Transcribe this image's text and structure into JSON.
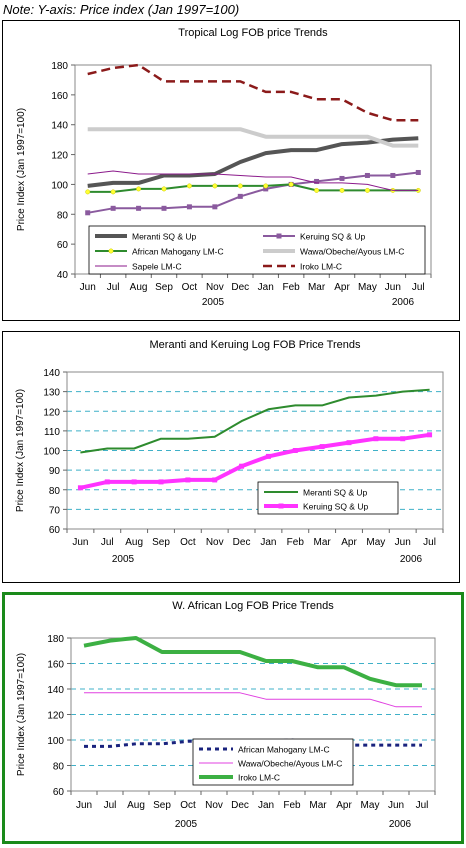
{
  "note": "Note: Y-axis: Price index (Jan 1997=100)",
  "chart_data": [
    {
      "type": "line",
      "title": "Tropical Log FOB price Trends",
      "ylabel": "Price Index (Jan 1997=100)",
      "xlabel": "",
      "categories": [
        "Jun",
        "Jul",
        "Aug",
        "Sep",
        "Oct",
        "Nov",
        "Dec",
        "Jan",
        "Feb",
        "Mar",
        "Apr",
        "May",
        "Jun",
        "Jul"
      ],
      "year_labels": [
        "2005",
        "2006"
      ],
      "ylim": [
        40,
        180
      ],
      "yticks": [
        40,
        60,
        80,
        100,
        120,
        140,
        160,
        180
      ],
      "grid": false,
      "legend_position": "bottom-inside",
      "series": [
        {
          "name": "Meranti SQ & Up",
          "color": "#555555",
          "style": "solid-thick",
          "marker": "none",
          "values": [
            99,
            101,
            101,
            106,
            106,
            107,
            115,
            121,
            123,
            123,
            127,
            128,
            130,
            131
          ]
        },
        {
          "name": "Keruing SQ & Up",
          "color": "#8a5a9e",
          "style": "solid",
          "marker": "square",
          "values": [
            81,
            84,
            84,
            84,
            85,
            85,
            92,
            97,
            100,
            102,
            104,
            106,
            106,
            108
          ]
        },
        {
          "name": "African Mahogany LM-C",
          "color": "#2e8b2e",
          "style": "solid",
          "marker": "yellow-dot",
          "values": [
            95,
            95,
            97,
            97,
            99,
            99,
            99,
            99,
            100,
            96,
            96,
            96,
            96,
            96
          ]
        },
        {
          "name": "Wawa/Obeche/Ayous LM-C",
          "color": "#cccccc",
          "style": "solid-thick",
          "marker": "none",
          "values": [
            137,
            137,
            137,
            137,
            137,
            137,
            137,
            132,
            132,
            132,
            132,
            132,
            126,
            126
          ]
        },
        {
          "name": "Sapele LM-C",
          "color": "#8b1a8b",
          "style": "solid-thin",
          "marker": "none",
          "values": [
            107,
            109,
            107,
            107,
            107,
            107,
            106,
            105,
            105,
            101,
            101,
            100,
            96,
            96
          ]
        },
        {
          "name": "Iroko LM-C",
          "color": "#8b1a1a",
          "style": "dashed",
          "marker": "none",
          "values": [
            174,
            178,
            180,
            169,
            169,
            169,
            169,
            162,
            162,
            157,
            157,
            148,
            143,
            143
          ]
        }
      ]
    },
    {
      "type": "line",
      "title": "Meranti and Keruing Log FOB Price Trends",
      "ylabel": "Price Index (Jan 1997=100)",
      "xlabel": "",
      "categories": [
        "Jun",
        "Jul",
        "Aug",
        "Sep",
        "Oct",
        "Nov",
        "Dec",
        "Jan",
        "Feb",
        "Mar",
        "Apr",
        "May",
        "Jun",
        "Jul"
      ],
      "year_labels": [
        "2005",
        "2006"
      ],
      "ylim": [
        60,
        140
      ],
      "yticks": [
        60,
        70,
        80,
        90,
        100,
        110,
        120,
        130,
        140
      ],
      "grid": true,
      "legend_position": "bottom-right-inside",
      "series": [
        {
          "name": "Meranti SQ & Up",
          "color": "#2e8b2e",
          "style": "solid",
          "marker": "none",
          "values": [
            99,
            101,
            101,
            106,
            106,
            107,
            115,
            121,
            123,
            123,
            127,
            128,
            130,
            131
          ]
        },
        {
          "name": "Keruing SQ & Up",
          "color": "#ff33ff",
          "style": "solid-thick",
          "marker": "square",
          "values": [
            81,
            84,
            84,
            84,
            85,
            85,
            92,
            97,
            100,
            102,
            104,
            106,
            106,
            108
          ]
        }
      ]
    },
    {
      "type": "line",
      "title": "W. African Log FOB Price Trends",
      "ylabel": "Price Index (Jan 1997=100)",
      "xlabel": "",
      "categories": [
        "Jun",
        "Jul",
        "Aug",
        "Sep",
        "Oct",
        "Nov",
        "Dec",
        "Jan",
        "Feb",
        "Mar",
        "Apr",
        "May",
        "Jun",
        "Jul"
      ],
      "year_labels": [
        "2005",
        "2006"
      ],
      "ylim": [
        60,
        180
      ],
      "yticks": [
        60,
        80,
        100,
        120,
        140,
        160,
        180
      ],
      "grid": true,
      "legend_position": "bottom-center-inside",
      "series": [
        {
          "name": "African Mahogany LM-C",
          "color": "#1a237e",
          "style": "dashed",
          "marker": "none",
          "values": [
            95,
            95,
            97,
            97,
            99,
            99,
            99,
            99,
            100,
            96,
            96,
            96,
            96,
            96
          ]
        },
        {
          "name": "Wawa/Obeche/Ayous LM-C",
          "color": "#e040e0",
          "style": "solid-thin",
          "marker": "none",
          "values": [
            137,
            137,
            137,
            137,
            137,
            137,
            137,
            132,
            132,
            132,
            132,
            132,
            126,
            126
          ]
        },
        {
          "name": "Iroko LM-C",
          "color": "#3cb043",
          "style": "solid-thick",
          "marker": "none",
          "values": [
            174,
            178,
            180,
            169,
            169,
            169,
            169,
            162,
            162,
            157,
            157,
            148,
            143,
            143
          ]
        }
      ]
    }
  ]
}
